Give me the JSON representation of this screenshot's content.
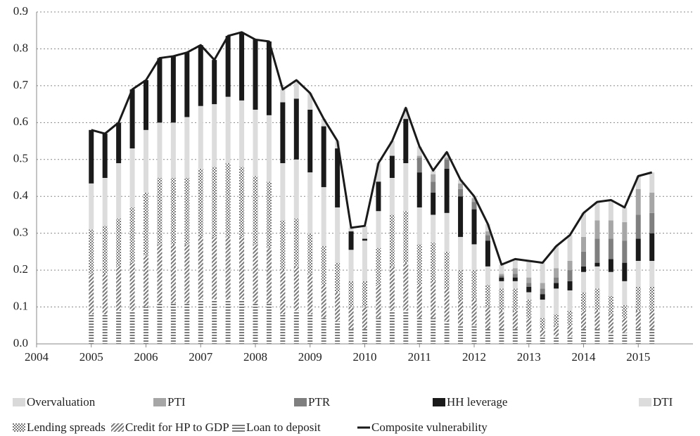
{
  "chart_data": {
    "type": "bar",
    "stacked": true,
    "x": [
      2005,
      2005.25,
      2005.5,
      2005.75,
      2006,
      2006.25,
      2006.5,
      2006.75,
      2007,
      2007.25,
      2007.5,
      2007.75,
      2008,
      2008.25,
      2008.5,
      2008.75,
      2009,
      2009.25,
      2009.5,
      2009.75,
      2010,
      2010.25,
      2010.5,
      2010.75,
      2011,
      2011.25,
      2011.5,
      2011.75,
      2012,
      2012.25,
      2012.5,
      2012.75,
      2013,
      2013.25,
      2013.5,
      2013.75,
      2014,
      2014.25,
      2014.5,
      2014.75,
      2015,
      2015.25
    ],
    "xlim": [
      2004,
      2016
    ],
    "xticks": [
      2004,
      2005,
      2006,
      2007,
      2008,
      2009,
      2010,
      2011,
      2012,
      2013,
      2014,
      2015
    ],
    "ylim": [
      0,
      0.9
    ],
    "yticks": [
      {
        "value": 0,
        "label": "0.0"
      },
      0.1,
      0.2,
      0.3,
      0.4,
      0.5,
      0.6,
      0.7,
      0.8,
      0.9
    ],
    "grid": true,
    "series": [
      {
        "name": "Overvaluation",
        "color": "#d9d9d9",
        "values": [
          0,
          0,
          0,
          0,
          0,
          0,
          0,
          0,
          0,
          0,
          0,
          0,
          0,
          0,
          0.035,
          0.05,
          0.045,
          0.02,
          0.02,
          0.01,
          0.035,
          0.05,
          0.04,
          0.03,
          0.025,
          0.01,
          0.015,
          0.01,
          0.005,
          0.02,
          0.025,
          0.025,
          0.045,
          0.055,
          0.06,
          0.07,
          0.065,
          0.05,
          0.055,
          0.04,
          0.035,
          0.055
        ]
      },
      {
        "name": "PTI",
        "color": "#a6a6a6",
        "values": [
          0,
          0,
          0,
          0,
          0,
          0,
          0,
          0,
          0,
          0,
          0,
          0,
          0,
          0,
          0,
          0,
          0,
          0,
          0,
          0,
          0,
          0,
          0,
          0,
          0.005,
          0.02,
          0.005,
          0.015,
          0.01,
          0.01,
          0.005,
          0.015,
          0.015,
          0.015,
          0.025,
          0.025,
          0.04,
          0.05,
          0.05,
          0.05,
          0.07,
          0.055
        ]
      },
      {
        "name": "PTR",
        "color": "#7f7f7f",
        "values": [
          0,
          0,
          0,
          0,
          0,
          0,
          0,
          0,
          0,
          0,
          0,
          0,
          0,
          0,
          0,
          0,
          0,
          0,
          0,
          0,
          0,
          0,
          0,
          0,
          0.04,
          0.03,
          0.025,
          0.02,
          0.02,
          0.015,
          0.005,
          0.01,
          0.01,
          0.015,
          0.015,
          0.03,
          0.04,
          0.065,
          0.055,
          0.06,
          0.065,
          0.055
        ]
      },
      {
        "name": "HH leverage",
        "color": "#1a1a1a",
        "values": [
          0.145,
          0.12,
          0.11,
          0.16,
          0.135,
          0.175,
          0.18,
          0.175,
          0.165,
          0.12,
          0.165,
          0.185,
          0.19,
          0.2,
          0.165,
          0.165,
          0.17,
          0.165,
          0.16,
          0.05,
          0.005,
          0.08,
          0.06,
          0.12,
          0.095,
          0.06,
          0.12,
          0.11,
          0.095,
          0.07,
          0.01,
          0.01,
          0.015,
          0.015,
          0.015,
          0.025,
          0.015,
          0.01,
          0.035,
          0.05,
          0.06,
          0.075
        ]
      },
      {
        "name": "DTI",
        "color": "#dcdcdc",
        "values": [
          0.125,
          0.13,
          0.15,
          0.16,
          0.17,
          0.15,
          0.15,
          0.165,
          0.17,
          0.17,
          0.18,
          0.18,
          0.18,
          0.18,
          0.155,
          0.16,
          0.165,
          0.16,
          0.15,
          0.085,
          0.11,
          0.1,
          0.1,
          0.13,
          0.1,
          0.075,
          0.105,
          0.09,
          0.07,
          0.05,
          0.02,
          0.02,
          0.02,
          0.05,
          0.07,
          0.055,
          0.055,
          0.06,
          0.065,
          0.065,
          0.07,
          0.07
        ]
      },
      {
        "name": "Lending spreads",
        "color": "#7a7a7a",
        "pattern": "checker",
        "values": [
          0.12,
          0.13,
          0.13,
          0.15,
          0.17,
          0.18,
          0.18,
          0.18,
          0.185,
          0.19,
          0.2,
          0.19,
          0.185,
          0.18,
          0.135,
          0.13,
          0.11,
          0.105,
          0.08,
          0.07,
          0.07,
          0.1,
          0.14,
          0.14,
          0.11,
          0.105,
          0.1,
          0.08,
          0.08,
          0.06,
          0.06,
          0.06,
          0.05,
          0.03,
          0.03,
          0.04,
          0.05,
          0.06,
          0.05,
          0.035,
          0.065,
          0.065
        ]
      },
      {
        "name": "Credit for HP to GDP",
        "color": "#7a7a7a",
        "pattern": "diagonal",
        "values": [
          0.11,
          0.11,
          0.12,
          0.13,
          0.14,
          0.16,
          0.16,
          0.16,
          0.17,
          0.17,
          0.17,
          0.17,
          0.16,
          0.15,
          0.12,
          0.12,
          0.11,
          0.09,
          0.08,
          0.06,
          0.06,
          0.09,
          0.12,
          0.13,
          0.09,
          0.1,
          0.09,
          0.07,
          0.07,
          0.06,
          0.05,
          0.05,
          0.04,
          0.02,
          0.03,
          0.03,
          0.05,
          0.05,
          0.05,
          0.04,
          0.05,
          0.05
        ]
      },
      {
        "name": "Loan to deposit",
        "color": "#7a7a7a",
        "pattern": "horizontal",
        "values": [
          0.08,
          0.08,
          0.09,
          0.09,
          0.1,
          0.11,
          0.11,
          0.11,
          0.12,
          0.12,
          0.12,
          0.12,
          0.11,
          0.11,
          0.08,
          0.09,
          0.08,
          0.07,
          0.06,
          0.04,
          0.04,
          0.07,
          0.09,
          0.09,
          0.07,
          0.07,
          0.06,
          0.05,
          0.05,
          0.04,
          0.04,
          0.04,
          0.03,
          0.02,
          0.02,
          0.02,
          0.04,
          0.04,
          0.03,
          0.03,
          0.04,
          0.04
        ]
      },
      {
        "name": "Composite vulnerability",
        "type": "line",
        "color": "#1a1a1a",
        "values": [
          0.58,
          0.57,
          0.6,
          0.69,
          0.715,
          0.775,
          0.78,
          0.79,
          0.81,
          0.77,
          0.835,
          0.845,
          0.825,
          0.82,
          0.69,
          0.715,
          0.68,
          0.61,
          0.55,
          0.315,
          0.32,
          0.49,
          0.55,
          0.64,
          0.535,
          0.47,
          0.52,
          0.445,
          0.4,
          0.325,
          0.215,
          0.23,
          0.225,
          0.22,
          0.265,
          0.295,
          0.355,
          0.385,
          0.39,
          0.37,
          0.455,
          0.465
        ]
      }
    ]
  }
}
